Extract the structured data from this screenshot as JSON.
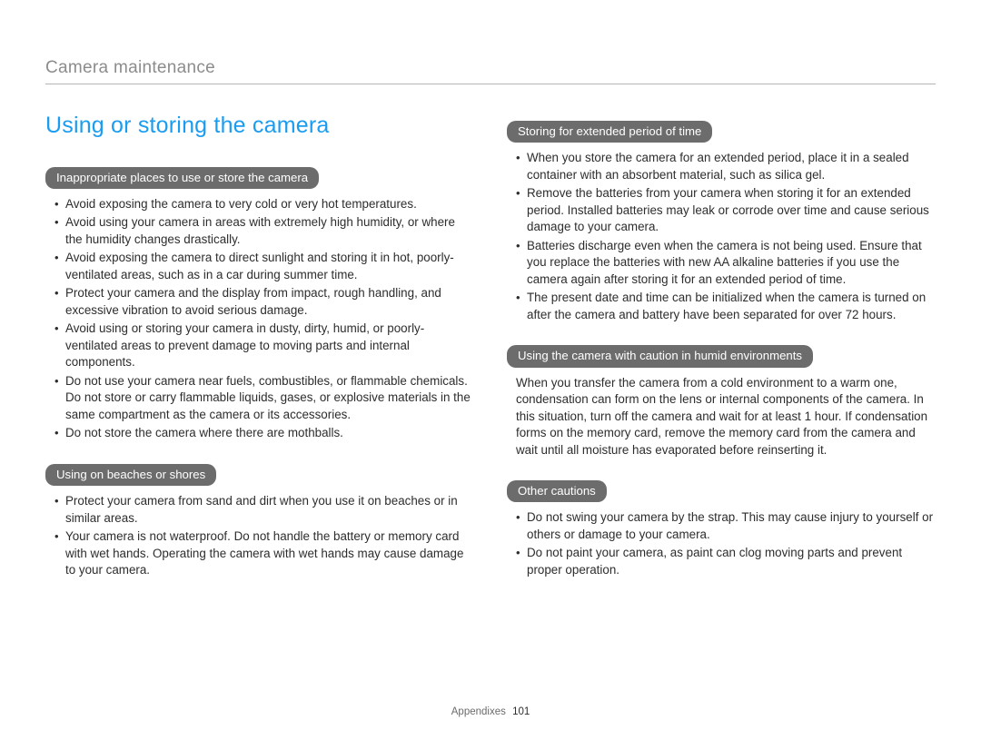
{
  "header": "Camera maintenance",
  "main_title": "Using or storing the camera",
  "left": {
    "sec1_title": "Inappropriate places to use or store the camera",
    "sec1_items": [
      "Avoid exposing the camera to very cold or very hot temperatures.",
      "Avoid using your camera in areas with extremely high humidity, or where the humidity changes drastically.",
      "Avoid exposing the camera to direct sunlight and storing it in hot, poorly-ventilated areas, such as in a car during summer time.",
      "Protect your camera and the display from impact, rough handling, and excessive vibration to avoid serious damage.",
      "Avoid using or storing your camera in dusty, dirty, humid, or poorly-ventilated areas to prevent damage to moving parts and internal components.",
      "Do not use your camera near fuels, combustibles, or flammable chemicals. Do not store or carry flammable liquids, gases, or explosive materials in the same compartment as the camera or its accessories.",
      "Do not store the camera where there are mothballs."
    ],
    "sec2_title": "Using on beaches or shores",
    "sec2_items": [
      "Protect your camera from sand and dirt when you use it on beaches or in similar areas.",
      "Your camera is not waterproof. Do not handle the battery or memory card with wet hands. Operating the camera with wet hands may cause damage to your camera."
    ]
  },
  "right": {
    "sec1_title": "Storing for extended period of time",
    "sec1_items": [
      "When you store the camera for an extended period, place it in a sealed container with an absorbent material, such as silica gel.",
      "Remove the batteries from your camera when storing it for an extended period. Installed batteries may leak or corrode over time and cause serious damage to your camera.",
      "Batteries discharge even when the camera is not being used. Ensure that you replace the batteries with new AA alkaline batteries if you use the camera again after storing it for an extended period of time.",
      "The present date and time can be initialized when the camera is turned on after the camera and battery have been separated for over 72 hours."
    ],
    "sec2_title": "Using the camera with caution in humid environments",
    "sec2_para": "When you transfer the camera from a cold environment to a warm one, condensation can form on the lens or internal components of the camera. In this situation, turn off the camera and wait for at least 1 hour. If condensation forms on the memory card, remove the memory card from the camera and wait until all moisture has evaporated before reinserting it.",
    "sec3_title": "Other cautions",
    "sec3_items": [
      "Do not swing your camera by the strap. This may cause injury to yourself or others or damage to your camera.",
      "Do not paint your camera, as paint can clog moving parts and prevent proper operation."
    ]
  },
  "footer_label": "Appendixes",
  "footer_page": "101"
}
